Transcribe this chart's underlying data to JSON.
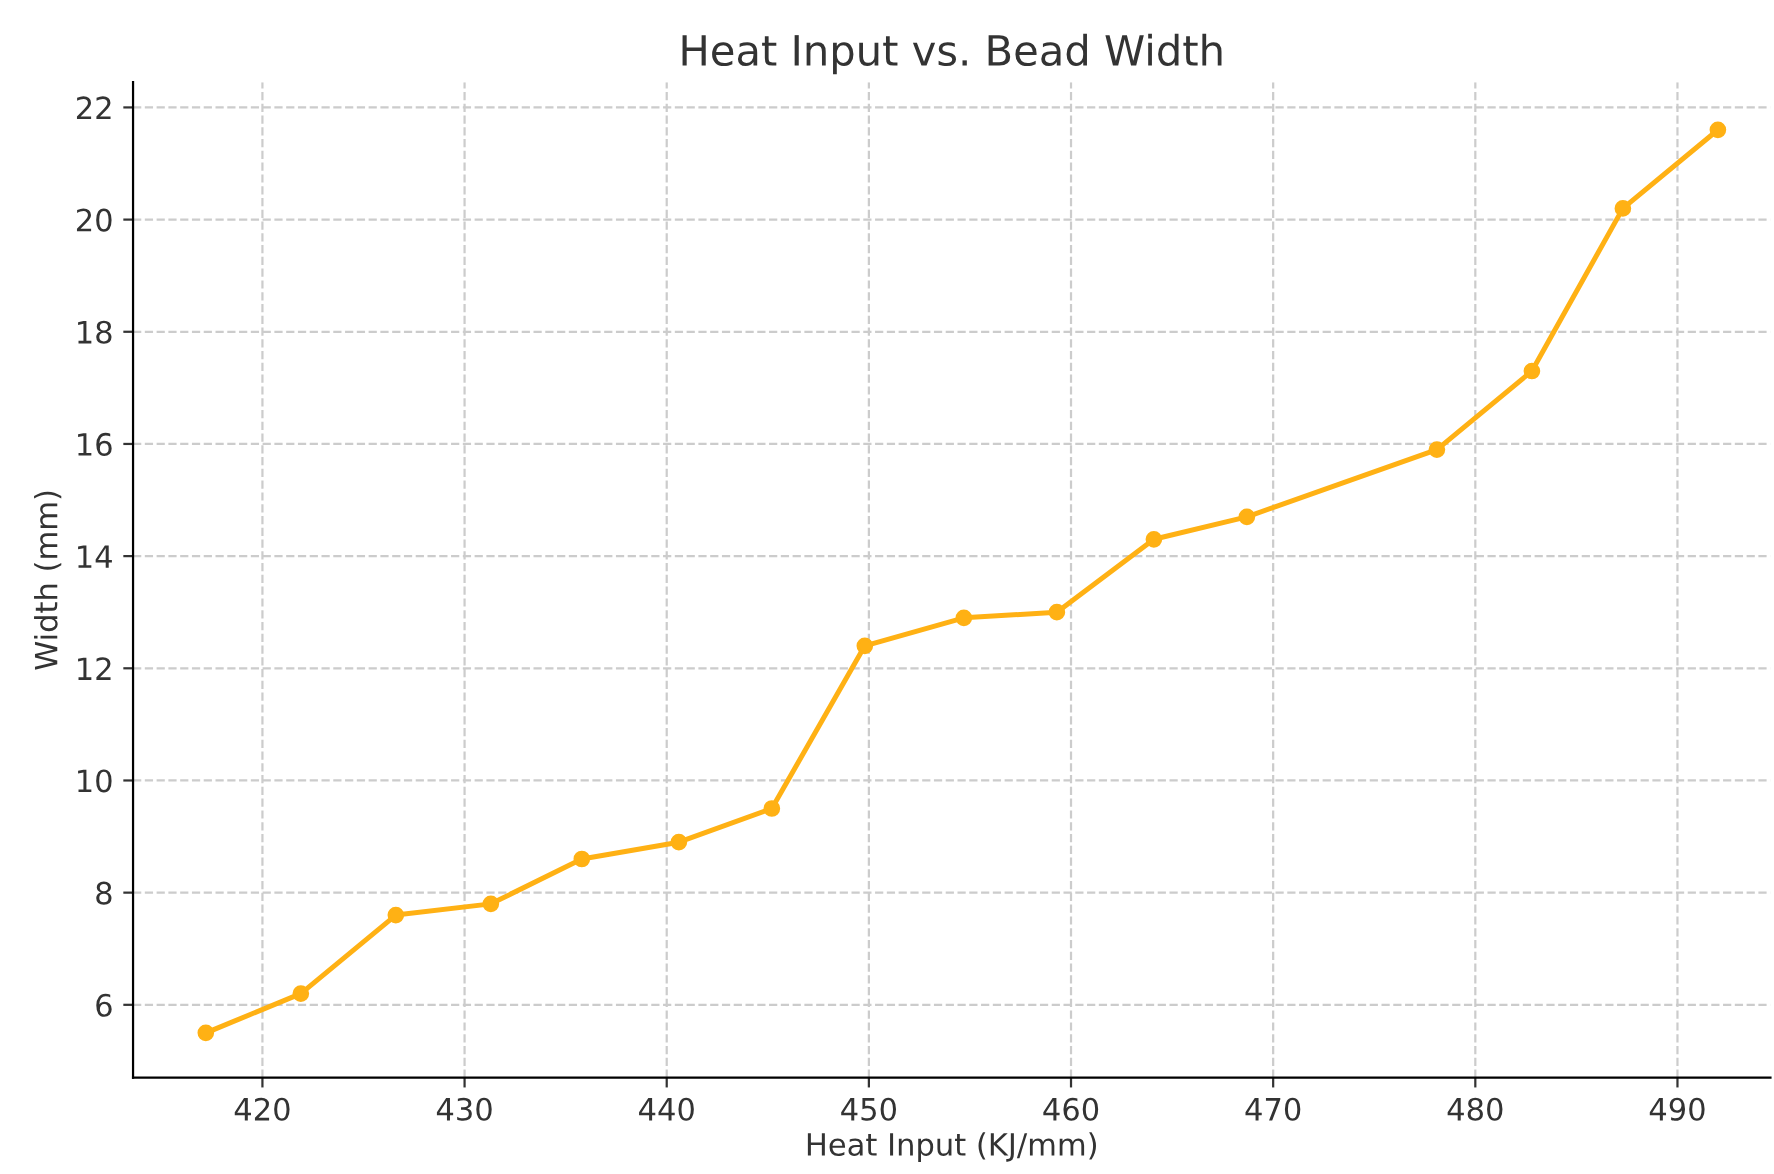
{
  "chart_data": {
    "type": "line",
    "title": "Heat Input vs. Bead Width",
    "xlabel": "Heat Input (KJ/mm)",
    "ylabel": "Width (mm)",
    "x": [
      417.2,
      421.9,
      426.6,
      431.3,
      435.8,
      440.6,
      445.2,
      449.8,
      454.7,
      459.3,
      464.1,
      468.7,
      478.1,
      482.8,
      487.3,
      492.0
    ],
    "series": [
      {
        "color": "#ffb114",
        "values": [
          5.5,
          6.2,
          7.6,
          7.8,
          8.6,
          8.9,
          9.5,
          12.4,
          12.9,
          13.0,
          14.3,
          14.7,
          15.9,
          17.3,
          20.2,
          21.6
        ]
      }
    ],
    "xlim": [
      413.6,
      494.6
    ],
    "ylim": [
      4.7,
      22.45
    ],
    "xticks": [
      420,
      430,
      440,
      450,
      460,
      470,
      480,
      490
    ],
    "yticks": [
      6,
      8,
      10,
      12,
      14,
      16,
      18,
      20,
      22
    ],
    "grid": true,
    "marker": "circle",
    "line_style": "solid"
  }
}
